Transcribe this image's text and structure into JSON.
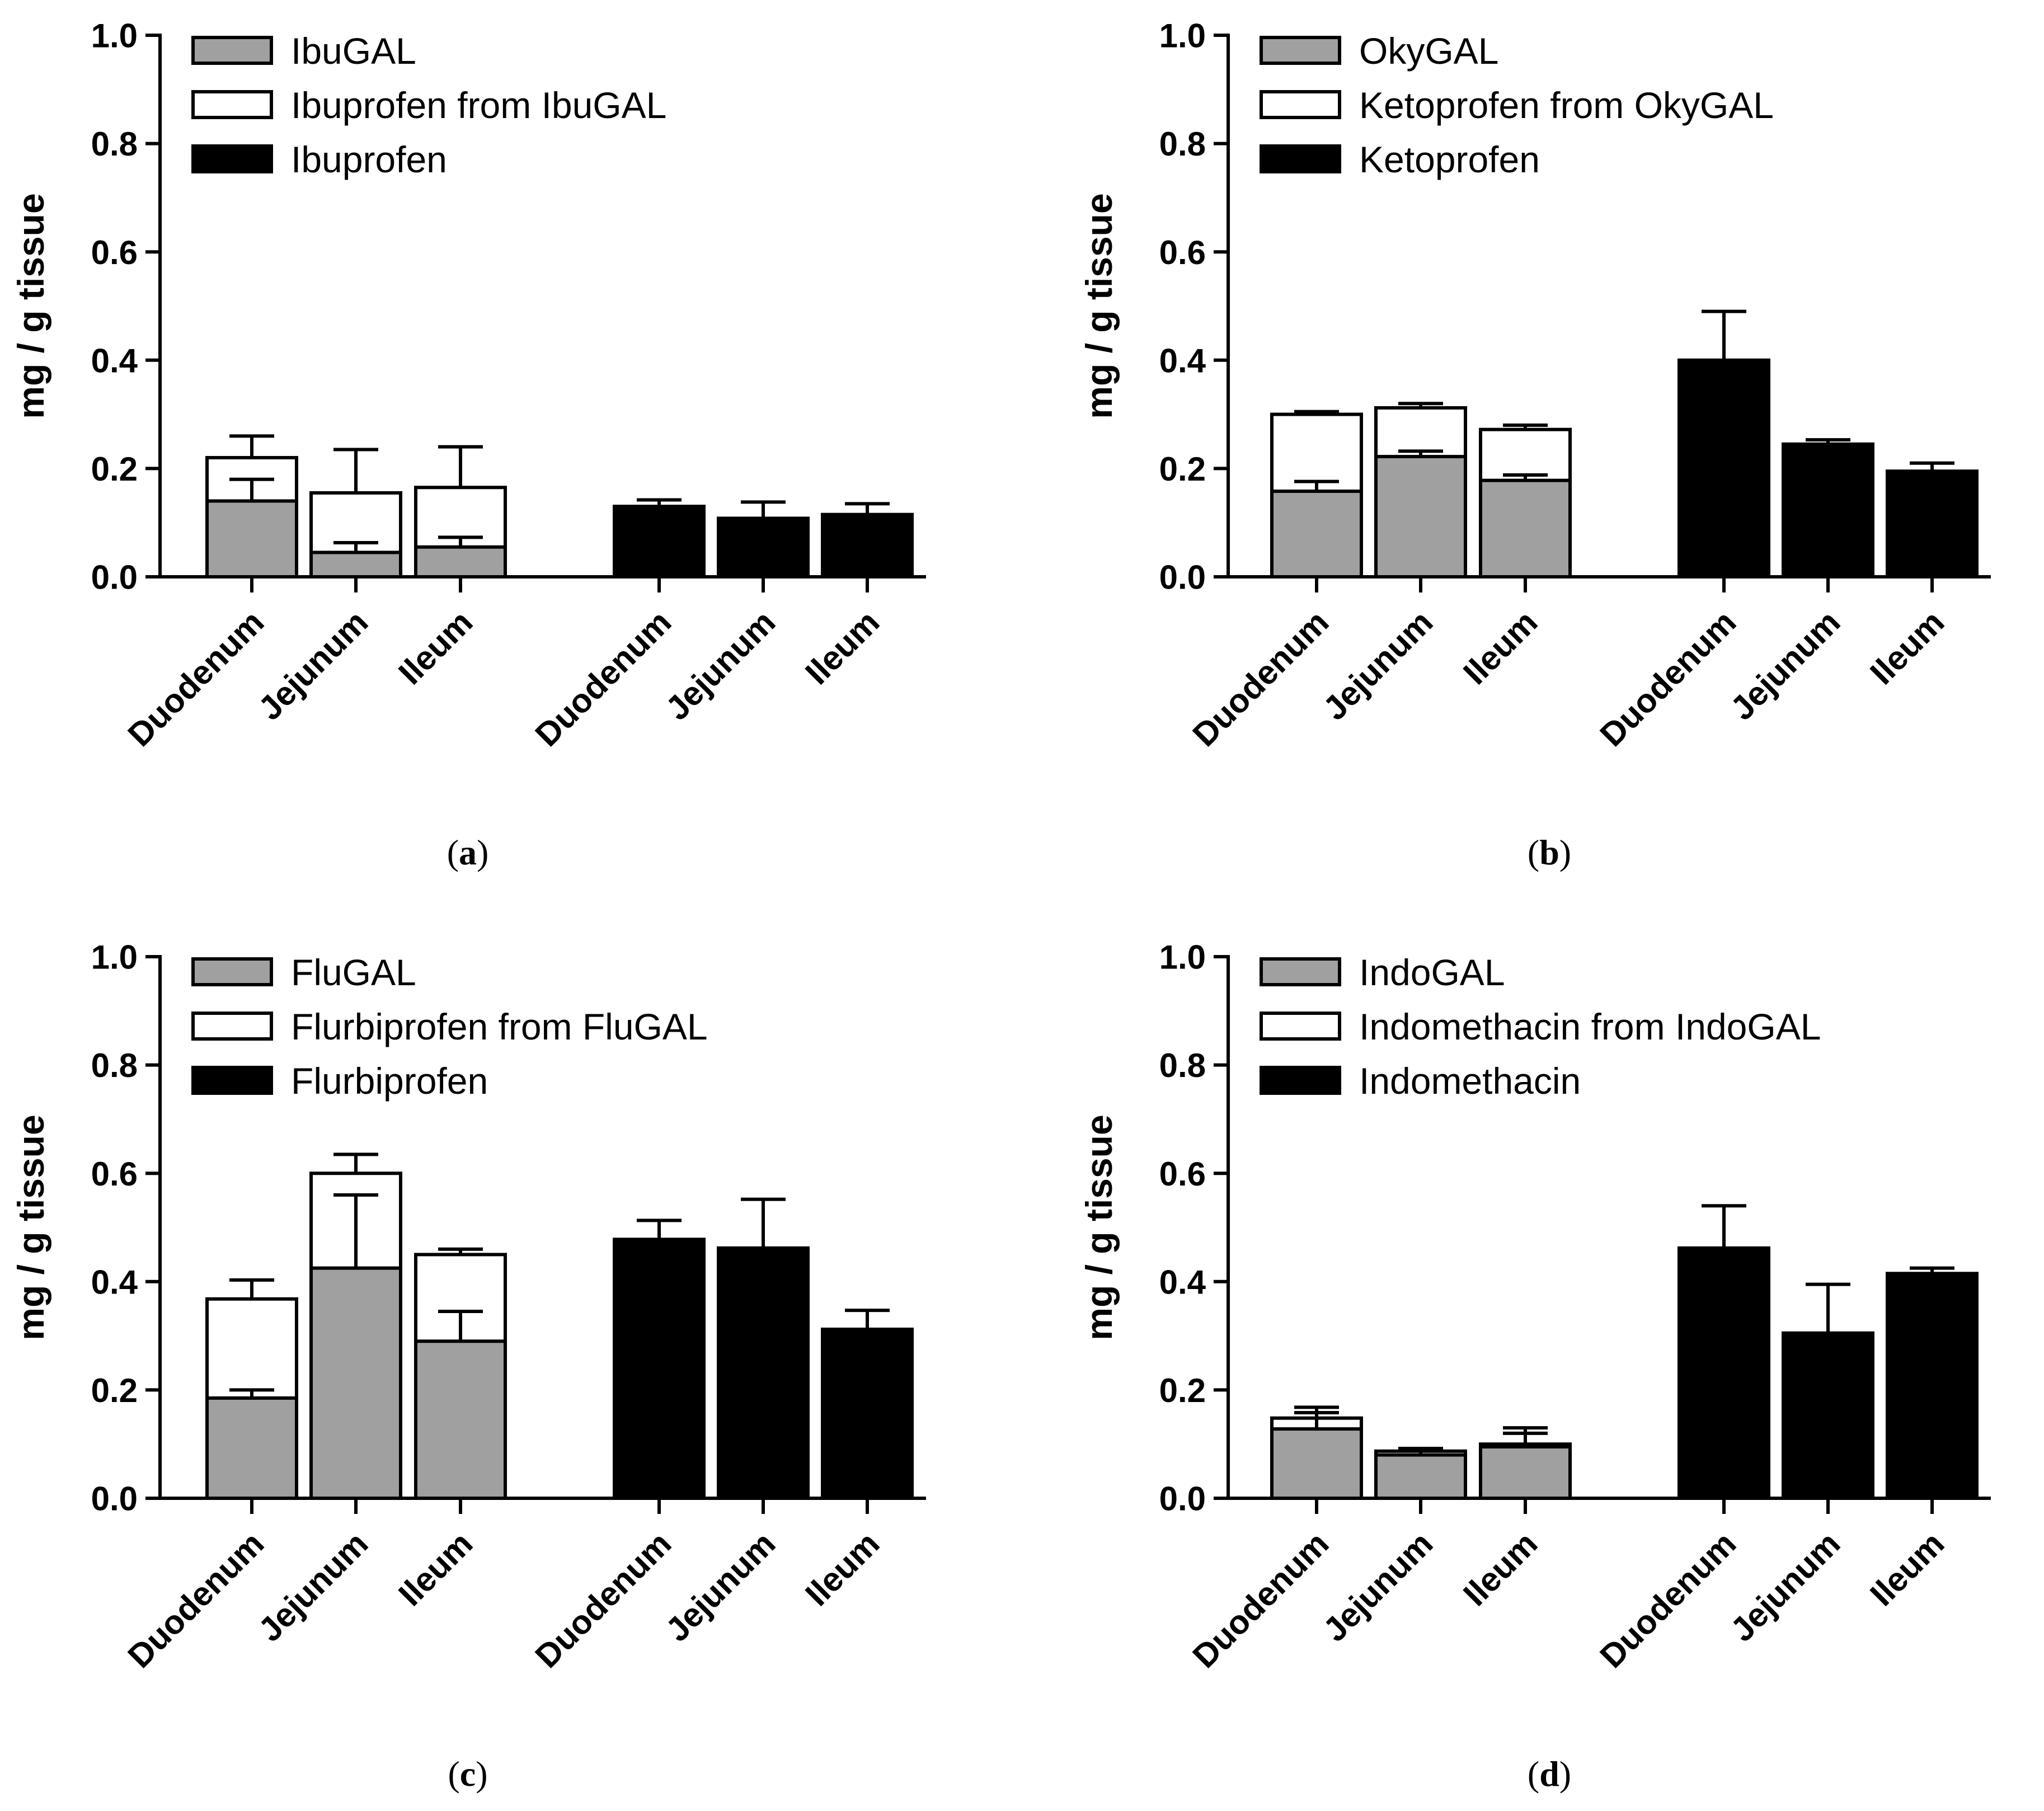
{
  "chart_data": [
    {
      "type": "bar",
      "panel_label": "a",
      "ylabel": "mg / g tissue",
      "ylim": [
        0,
        1.0
      ],
      "yticks": [
        "0.0",
        "0.2",
        "0.4",
        "0.6",
        "0.8",
        "1.0"
      ],
      "categories": [
        "Duodenum",
        "Jejunum",
        "Ileum",
        "Duodenum",
        "Jejunum",
        "Ileum"
      ],
      "legend": [
        {
          "label": "IbuGAL",
          "color": "#a0a0a0"
        },
        {
          "label": "Ibuprofen from IbuGAL",
          "color": "#ffffff"
        },
        {
          "label": "Ibuprofen",
          "color": "#000000"
        }
      ],
      "groups": [
        {
          "series": "stacked",
          "bars": [
            {
              "category": "Duodenum",
              "prodrug": 0.14,
              "prodrug_err": 0.04,
              "released_total": 0.22,
              "total_err": 0.04
            },
            {
              "category": "Jejunum",
              "prodrug": 0.045,
              "prodrug_err": 0.018,
              "released_total": 0.155,
              "total_err": 0.08
            },
            {
              "category": "Ileum",
              "prodrug": 0.055,
              "prodrug_err": 0.018,
              "released_total": 0.165,
              "total_err": 0.075
            }
          ]
        },
        {
          "series": "parent",
          "bars": [
            {
              "category": "Duodenum",
              "value": 0.13,
              "err": 0.012
            },
            {
              "category": "Jejunum",
              "value": 0.108,
              "err": 0.03
            },
            {
              "category": "Ileum",
              "value": 0.115,
              "err": 0.02
            }
          ]
        }
      ]
    },
    {
      "type": "bar",
      "panel_label": "b",
      "ylabel": "mg / g tissue",
      "ylim": [
        0,
        1.0
      ],
      "yticks": [
        "0.0",
        "0.2",
        "0.4",
        "0.6",
        "0.8",
        "1.0"
      ],
      "categories": [
        "Duodenum",
        "Jejunum",
        "Ileum",
        "Duodenum",
        "Jejunum",
        "Ileum"
      ],
      "legend": [
        {
          "label": "OkyGAL",
          "color": "#a0a0a0"
        },
        {
          "label": "Ketoprofen from OkyGAL",
          "color": "#ffffff"
        },
        {
          "label": "Ketoprofen",
          "color": "#000000"
        }
      ],
      "groups": [
        {
          "series": "stacked",
          "bars": [
            {
              "category": "Duodenum",
              "prodrug": 0.158,
              "prodrug_err": 0.018,
              "released_total": 0.3,
              "total_err": 0.005
            },
            {
              "category": "Jejunum",
              "prodrug": 0.222,
              "prodrug_err": 0.01,
              "released_total": 0.312,
              "total_err": 0.008
            },
            {
              "category": "Ileum",
              "prodrug": 0.178,
              "prodrug_err": 0.01,
              "released_total": 0.272,
              "total_err": 0.008
            }
          ]
        },
        {
          "series": "parent",
          "bars": [
            {
              "category": "Duodenum",
              "value": 0.4,
              "err": 0.09
            },
            {
              "category": "Jejunum",
              "value": 0.245,
              "err": 0.008
            },
            {
              "category": "Ileum",
              "value": 0.195,
              "err": 0.015
            }
          ]
        }
      ]
    },
    {
      "type": "bar",
      "panel_label": "c",
      "ylabel": "mg / g tissue",
      "ylim": [
        0,
        1.0
      ],
      "yticks": [
        "0.0",
        "0.2",
        "0.4",
        "0.6",
        "0.8",
        "1.0"
      ],
      "categories": [
        "Duodenum",
        "Jejunum",
        "Ileum",
        "Duodenum",
        "Jejunum",
        "Ileum"
      ],
      "legend": [
        {
          "label": "FluGAL",
          "color": "#a0a0a0"
        },
        {
          "label": "Flurbiprofen from FluGAL",
          "color": "#ffffff"
        },
        {
          "label": "Flurbiprofen",
          "color": "#000000"
        }
      ],
      "groups": [
        {
          "series": "stacked",
          "bars": [
            {
              "category": "Duodenum",
              "prodrug": 0.185,
              "prodrug_err": 0.015,
              "released_total": 0.368,
              "total_err": 0.035
            },
            {
              "category": "Jejunum",
              "prodrug": 0.425,
              "prodrug_err": 0.135,
              "released_total": 0.6,
              "total_err": 0.035
            },
            {
              "category": "Ileum",
              "prodrug": 0.29,
              "prodrug_err": 0.055,
              "released_total": 0.45,
              "total_err": 0.01
            }
          ]
        },
        {
          "series": "parent",
          "bars": [
            {
              "category": "Duodenum",
              "value": 0.478,
              "err": 0.035
            },
            {
              "category": "Jejunum",
              "value": 0.462,
              "err": 0.09
            },
            {
              "category": "Ileum",
              "value": 0.312,
              "err": 0.035
            }
          ]
        }
      ]
    },
    {
      "type": "bar",
      "panel_label": "d",
      "ylabel": "mg / g tissue",
      "ylim": [
        0,
        1.0
      ],
      "yticks": [
        "0.0",
        "0.2",
        "0.4",
        "0.6",
        "0.8",
        "1.0"
      ],
      "categories": [
        "Duodenum",
        "Jejunum",
        "Ileum",
        "Duodenum",
        "Jejunum",
        "Ileum"
      ],
      "legend": [
        {
          "label": "IndoGAL",
          "color": "#a0a0a0"
        },
        {
          "label": "Indomethacin from IndoGAL",
          "color": "#ffffff"
        },
        {
          "label": "Indomethacin",
          "color": "#000000"
        }
      ],
      "groups": [
        {
          "series": "stacked",
          "bars": [
            {
              "category": "Duodenum",
              "prodrug": 0.128,
              "prodrug_err": 0.03,
              "released_total": 0.148,
              "total_err": 0.02
            },
            {
              "category": "Jejunum",
              "prodrug": 0.08,
              "prodrug_err": 0.01,
              "released_total": 0.087,
              "total_err": 0.005
            },
            {
              "category": "Ileum",
              "prodrug": 0.095,
              "prodrug_err": 0.035,
              "released_total": 0.1,
              "total_err": 0.02
            }
          ]
        },
        {
          "series": "parent",
          "bars": [
            {
              "category": "Duodenum",
              "value": 0.462,
              "err": 0.078
            },
            {
              "category": "Jejunum",
              "value": 0.305,
              "err": 0.09
            },
            {
              "category": "Ileum",
              "value": 0.415,
              "err": 0.01
            }
          ]
        }
      ]
    }
  ]
}
